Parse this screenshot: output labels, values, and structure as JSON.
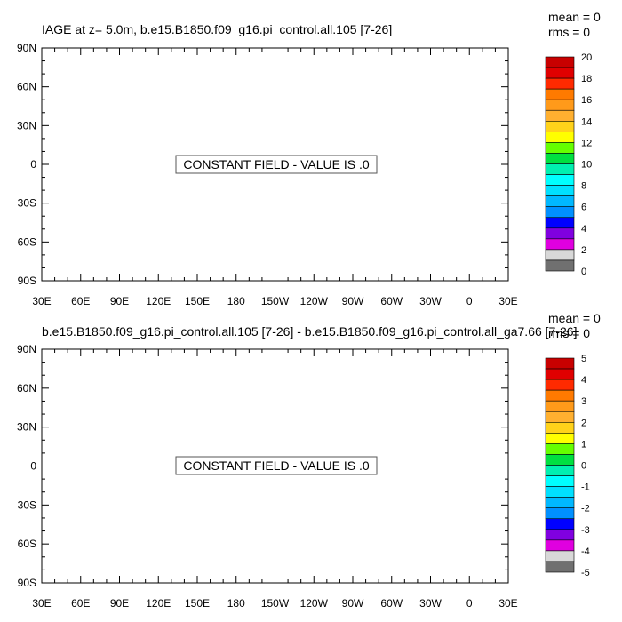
{
  "panels": [
    {
      "title": "IAGE at z=   5.0m, b.e15.B1850.f09_g16.pi_control.all.105 [7-26]",
      "stats": {
        "mean": "mean = 0",
        "rms": "rms = 0"
      },
      "message": "CONSTANT FIELD - VALUE IS .0",
      "colorbar_labels": [
        "20",
        "18",
        "16",
        "14",
        "12",
        "10",
        "8",
        "6",
        "4",
        "2",
        "0"
      ],
      "colorbar_colors": [
        "#c80000",
        "#e00000",
        "#ff2a00",
        "#ff7a00",
        "#ff9a1a",
        "#ffb030",
        "#ffd21a",
        "#ffff00",
        "#66ff00",
        "#00e040",
        "#00f0b0",
        "#00ffff",
        "#00e0ff",
        "#00b8ff",
        "#0090ff",
        "#0000ff",
        "#8000e0",
        "#e000e0",
        "#d8d8d8",
        "#707070"
      ]
    },
    {
      "title": "b.e15.B1850.f09_g16.pi_control.all.105 [7-26] - b.e15.B1850.f09_g16.pi_control.all_ga7.66 [7-26]",
      "stats": {
        "mean": "mean = 0",
        "rms": "rms = 0"
      },
      "message": "CONSTANT FIELD - VALUE IS .0",
      "colorbar_labels": [
        "5",
        "4",
        "3",
        "2",
        "1",
        "0",
        "-1",
        "-2",
        "-3",
        "-4",
        "-5"
      ],
      "colorbar_colors": [
        "#c80000",
        "#e00000",
        "#ff2a00",
        "#ff7a00",
        "#ff9a1a",
        "#ffb030",
        "#ffd21a",
        "#ffff00",
        "#66ff00",
        "#00e040",
        "#00f0b0",
        "#00ffff",
        "#00e0ff",
        "#00b8ff",
        "#0090ff",
        "#0000ff",
        "#8000e0",
        "#e000e0",
        "#d8d8d8",
        "#707070"
      ]
    }
  ],
  "chart_data": [
    {
      "type": "heatmap",
      "title": "IAGE at z=   5.0m, b.e15.B1850.f09_g16.pi_control.all.105 [7-26]",
      "x_ticks": [
        "30E",
        "60E",
        "90E",
        "120E",
        "150E",
        "180",
        "150W",
        "120W",
        "90W",
        "60W",
        "30W",
        "0",
        "30E"
      ],
      "y_ticks": [
        "90N",
        "60N",
        "30N",
        "0",
        "30S",
        "60S",
        "90S"
      ],
      "xlim": [
        30,
        390
      ],
      "ylim": [
        -90,
        90
      ],
      "colorbar_range": [
        0,
        20
      ],
      "mean": 0,
      "rms": 0,
      "field_value": 0
    },
    {
      "type": "heatmap",
      "title": "b.e15.B1850.f09_g16.pi_control.all.105 [7-26] - b.e15.B1850.f09_g16.pi_control.all_ga7.66 [7-26]",
      "x_ticks": [
        "30E",
        "60E",
        "90E",
        "120E",
        "150E",
        "180",
        "150W",
        "120W",
        "90W",
        "60W",
        "30W",
        "0",
        "30E"
      ],
      "y_ticks": [
        "90N",
        "60N",
        "30N",
        "0",
        "30S",
        "60S",
        "90S"
      ],
      "xlim": [
        30,
        390
      ],
      "ylim": [
        -90,
        90
      ],
      "colorbar_range": [
        -5,
        5
      ],
      "mean": 0,
      "rms": 0,
      "field_value": 0
    }
  ]
}
